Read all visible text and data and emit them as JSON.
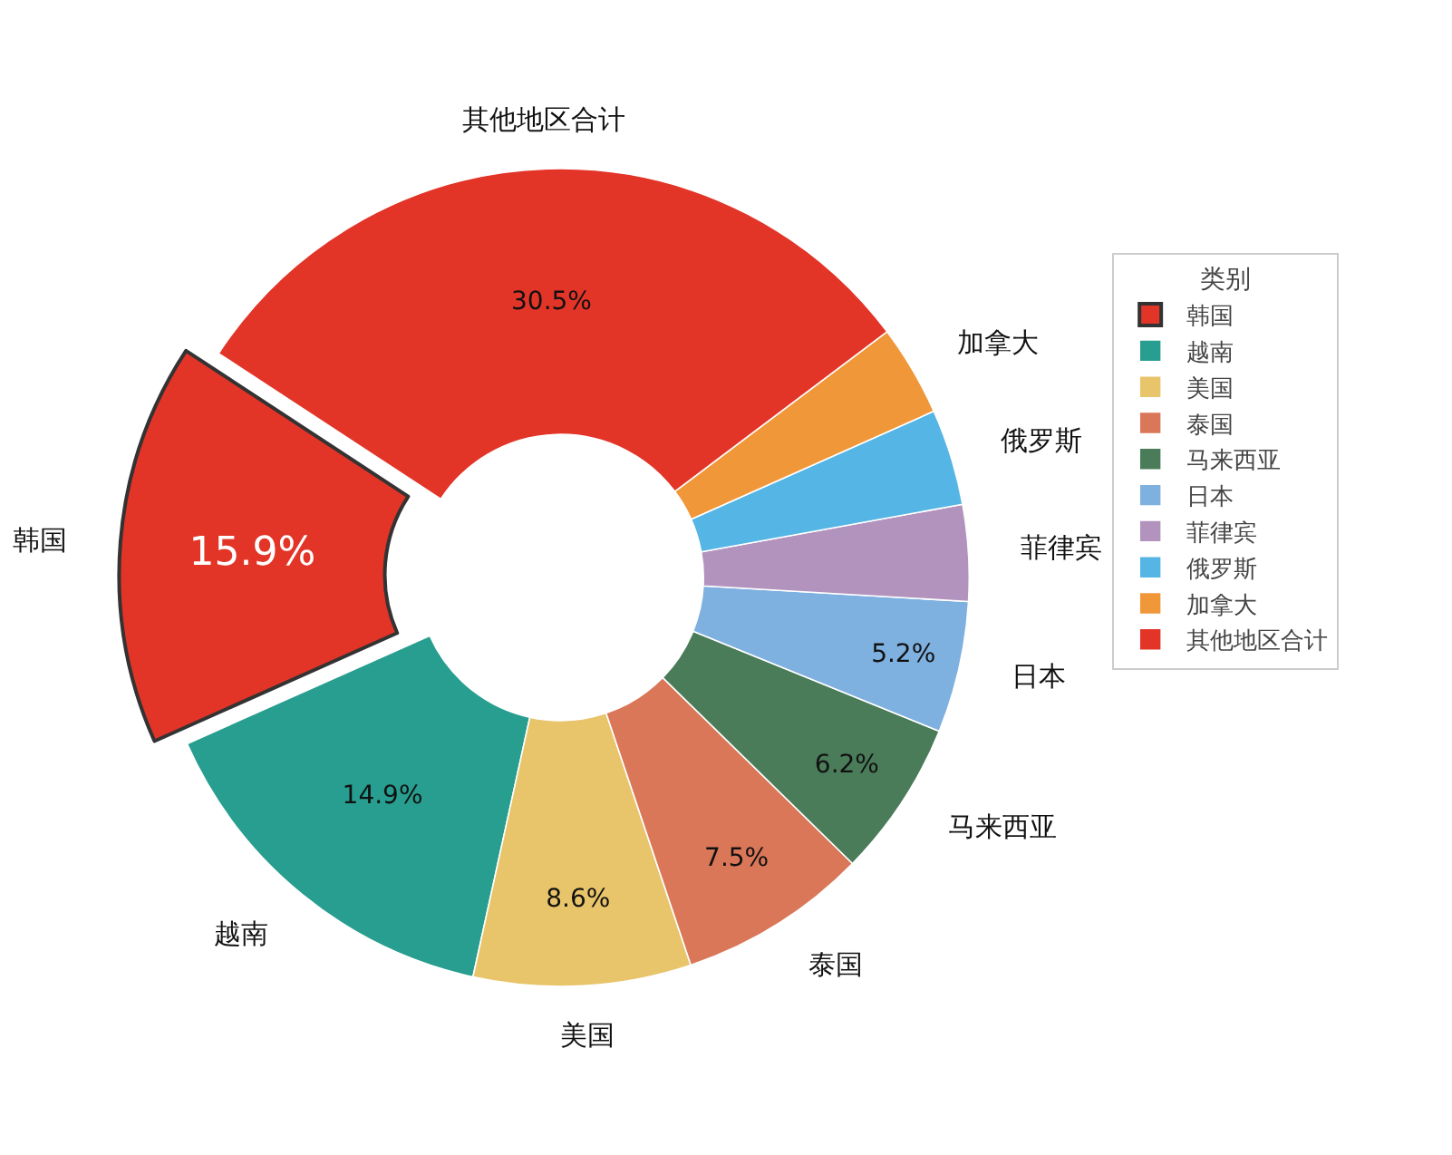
{
  "chart_data": {
    "type": "donut",
    "categories": [
      "韩国",
      "越南",
      "美国",
      "泰国",
      "马来西亚",
      "日本",
      "菲律宾",
      "俄罗斯",
      "加拿大",
      "其他地区合计"
    ],
    "values": [
      15.9,
      14.9,
      8.6,
      7.5,
      6.2,
      5.2,
      3.8,
      3.8,
      3.6,
      30.5
    ],
    "value_labels": [
      "15.9%",
      "14.9%",
      "8.6%",
      "7.5%",
      "6.2%",
      "5.2%",
      null,
      null,
      null,
      "30.5%"
    ],
    "colors": [
      "#e33428",
      "#279e8f",
      "#e8c46a",
      "#d97758",
      "#4a7c59",
      "#7eb0e0",
      "#b293bd",
      "#55b5e5",
      "#f0973a",
      "#e33428"
    ],
    "legend": "right",
    "legend_title": "类别"
  }
}
